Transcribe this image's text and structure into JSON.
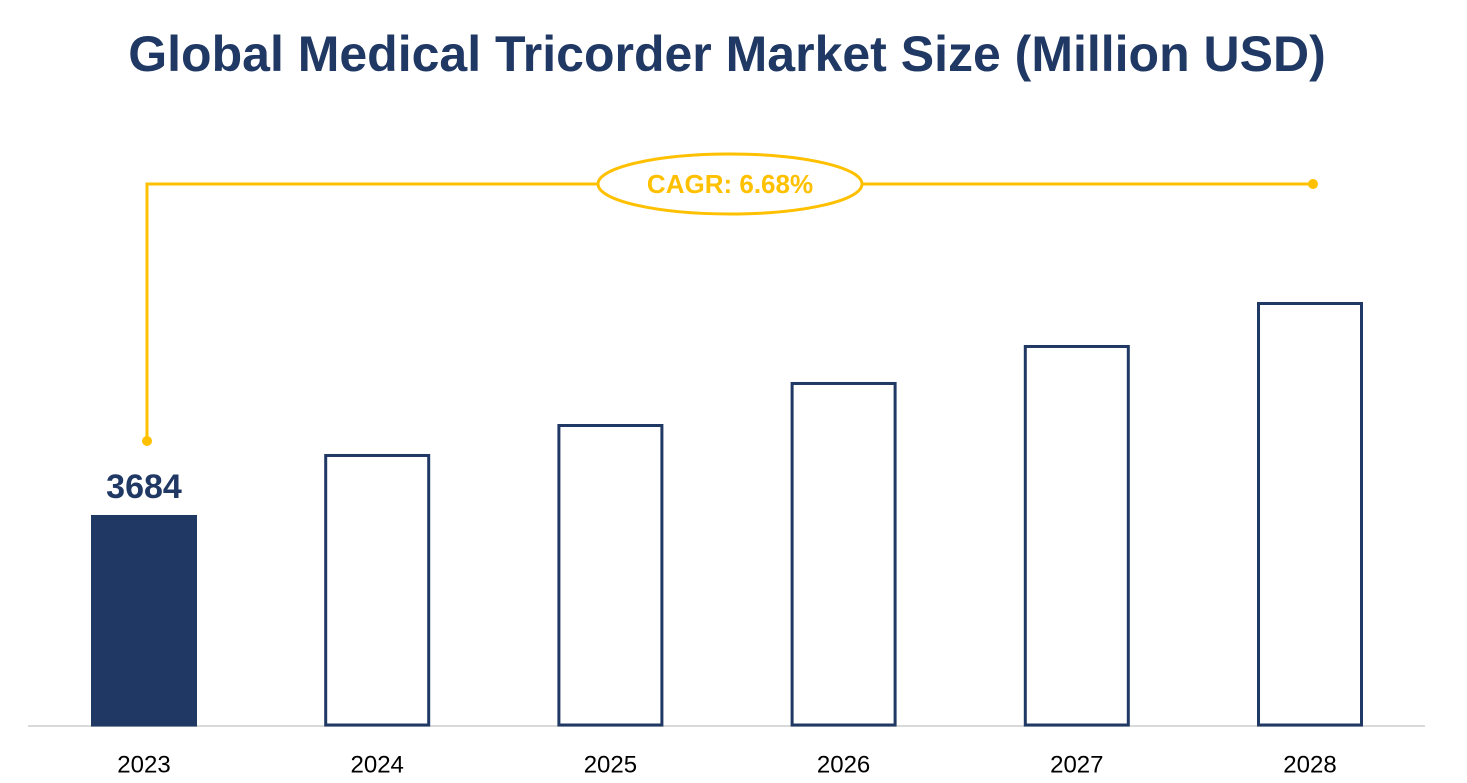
{
  "chart_data": {
    "type": "bar",
    "title": "Global Medical Tricorder Market Size (Million USD)",
    "annotation": "CAGR: 6.68%",
    "categories": [
      "2023",
      "2024",
      "2025",
      "2026",
      "2027",
      "2028"
    ],
    "values": [
      3684,
      4754,
      5280,
      6017,
      6666,
      7420
    ],
    "value_labels": [
      "3684",
      null,
      null,
      null,
      null,
      null
    ],
    "color": "#203864",
    "annotation_color": "#ffc000",
    "filled": [
      true,
      false,
      false,
      false,
      false,
      false
    ]
  }
}
